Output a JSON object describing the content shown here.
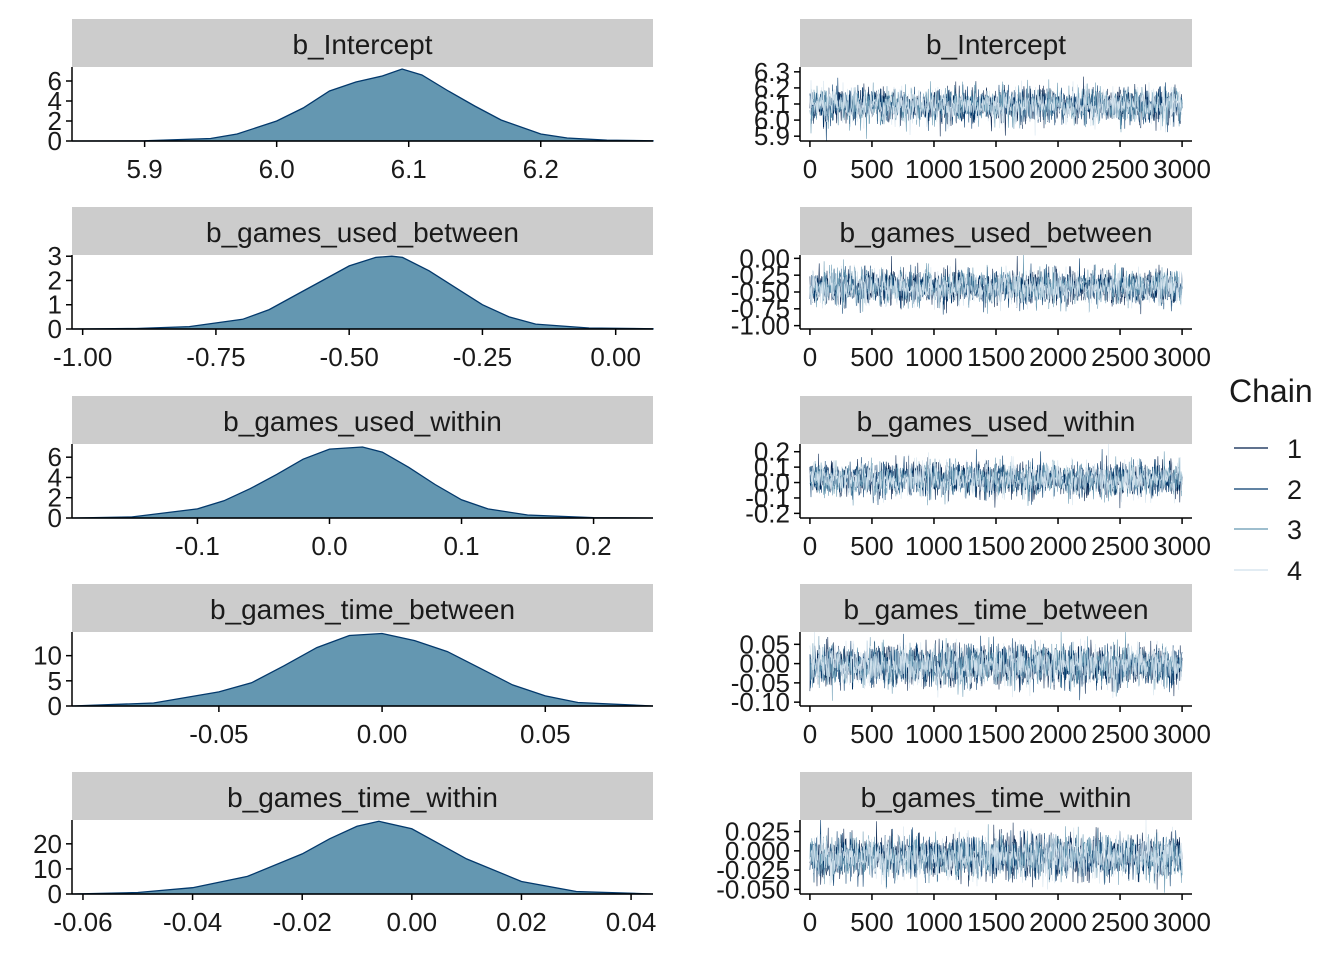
{
  "legend": {
    "title": "Chain",
    "items": [
      {
        "label": "1",
        "color": "#011f4b"
      },
      {
        "label": "2",
        "color": "#03396c"
      },
      {
        "label": "3",
        "color": "#6497b1"
      },
      {
        "label": "4",
        "color": "#d1e1ec"
      }
    ]
  },
  "colors": {
    "density_fill": "#6497b1",
    "density_line": "#03396c",
    "strip_bg": "#cccccc"
  },
  "chart_data": [
    {
      "type": "area",
      "panel": "density",
      "title": "b_Intercept",
      "xlim": [
        5.845,
        6.285
      ],
      "ylim": [
        0,
        7.4
      ],
      "xticks": [
        5.9,
        6.0,
        6.1,
        6.2
      ],
      "xtick_labels": [
        "5.9",
        "6.0",
        "6.1",
        "6.2"
      ],
      "yticks": [
        0,
        2,
        4,
        6
      ],
      "ytick_labels": [
        "0",
        "2",
        "4",
        "6"
      ],
      "x": [
        5.845,
        5.9,
        5.95,
        5.97,
        6.0,
        6.02,
        6.04,
        6.06,
        6.08,
        6.095,
        6.11,
        6.13,
        6.15,
        6.17,
        6.2,
        6.22,
        6.25,
        6.285
      ],
      "y": [
        0.0,
        0.02,
        0.25,
        0.7,
        2.0,
        3.3,
        5.0,
        5.9,
        6.5,
        7.2,
        6.6,
        5.0,
        3.5,
        2.1,
        0.7,
        0.3,
        0.08,
        0.02
      ]
    },
    {
      "type": "line",
      "panel": "trace",
      "title": "b_Intercept",
      "xlim": [
        -80,
        3080
      ],
      "ylim": [
        5.87,
        6.33
      ],
      "xticks": [
        0,
        500,
        1000,
        1500,
        2000,
        2500,
        3000
      ],
      "xtick_labels": [
        "0",
        "500",
        "1000",
        "1500",
        "2000",
        "2500",
        "3000"
      ],
      "yticks": [
        5.9,
        6.0,
        6.1,
        6.2,
        6.3
      ],
      "ytick_labels": [
        "5.9",
        "6.0",
        "6.1",
        "6.2",
        "6.3"
      ],
      "iterations": 3000,
      "mean": 6.09,
      "sd": 0.055
    },
    {
      "type": "area",
      "panel": "density",
      "title": "b_games_used_between",
      "xlim": [
        -1.02,
        0.07
      ],
      "ylim": [
        0,
        3.05
      ],
      "xticks": [
        -1.0,
        -0.75,
        -0.5,
        -0.25,
        0.0
      ],
      "xtick_labels": [
        "-1.00",
        "-0.75",
        "-0.50",
        "-0.25",
        "0.00"
      ],
      "yticks": [
        0,
        1,
        2,
        3
      ],
      "ytick_labels": [
        "0",
        "1",
        "2",
        "3"
      ],
      "x": [
        -1.02,
        -0.9,
        -0.8,
        -0.7,
        -0.65,
        -0.6,
        -0.55,
        -0.5,
        -0.45,
        -0.42,
        -0.4,
        -0.35,
        -0.3,
        -0.25,
        -0.2,
        -0.15,
        -0.05,
        0.07
      ],
      "y": [
        0.0,
        0.02,
        0.1,
        0.4,
        0.8,
        1.4,
        2.0,
        2.6,
        2.95,
        3.0,
        2.95,
        2.4,
        1.7,
        1.0,
        0.5,
        0.2,
        0.04,
        0.01
      ]
    },
    {
      "type": "line",
      "panel": "trace",
      "title": "b_games_used_between",
      "xlim": [
        -80,
        3080
      ],
      "ylim": [
        -1.05,
        0.05
      ],
      "xticks": [
        0,
        500,
        1000,
        1500,
        2000,
        2500,
        3000
      ],
      "xtick_labels": [
        "0",
        "500",
        "1000",
        "1500",
        "2000",
        "2500",
        "3000"
      ],
      "yticks": [
        -1.0,
        -0.75,
        -0.5,
        -0.25,
        0.0
      ],
      "ytick_labels": [
        "-1.00",
        "-0.75",
        "-0.50",
        "-0.25",
        "0.00"
      ],
      "iterations": 3000,
      "mean": -0.43,
      "sd": 0.13
    },
    {
      "type": "area",
      "panel": "density",
      "title": "b_games_used_within",
      "xlim": [
        -0.195,
        0.245
      ],
      "ylim": [
        0,
        7.3
      ],
      "xticks": [
        -0.1,
        0.0,
        0.1,
        0.2
      ],
      "xtick_labels": [
        "-0.1",
        "0.0",
        "0.1",
        "0.2"
      ],
      "yticks": [
        0,
        2,
        4,
        6
      ],
      "ytick_labels": [
        "0",
        "2",
        "4",
        "6"
      ],
      "x": [
        -0.195,
        -0.15,
        -0.1,
        -0.08,
        -0.06,
        -0.04,
        -0.02,
        0.0,
        0.025,
        0.04,
        0.06,
        0.08,
        0.1,
        0.12,
        0.15,
        0.2,
        0.245
      ],
      "y": [
        0.0,
        0.1,
        0.9,
        1.7,
        2.9,
        4.3,
        5.8,
        6.8,
        7.0,
        6.5,
        5.0,
        3.3,
        1.8,
        0.9,
        0.3,
        0.03,
        0.0
      ]
    },
    {
      "type": "line",
      "panel": "trace",
      "title": "b_games_used_within",
      "xlim": [
        -80,
        3080
      ],
      "ylim": [
        -0.23,
        0.25
      ],
      "xticks": [
        0,
        500,
        1000,
        1500,
        2000,
        2500,
        3000
      ],
      "xtick_labels": [
        "0",
        "500",
        "1000",
        "1500",
        "2000",
        "2500",
        "3000"
      ],
      "yticks": [
        -0.2,
        -0.1,
        0.0,
        0.1,
        0.2
      ],
      "ytick_labels": [
        "-0.2",
        "-0.1",
        "0.0",
        "0.1",
        "0.2"
      ],
      "iterations": 3000,
      "mean": 0.02,
      "sd": 0.055
    },
    {
      "type": "area",
      "panel": "density",
      "title": "b_games_time_between",
      "xlim": [
        -0.095,
        0.083
      ],
      "ylim": [
        0,
        14.7
      ],
      "xticks": [
        -0.05,
        0.0,
        0.05
      ],
      "xtick_labels": [
        "-0.05",
        "0.00",
        "0.05"
      ],
      "yticks": [
        0,
        5,
        10
      ],
      "ytick_labels": [
        "0",
        "5",
        "10"
      ],
      "x": [
        -0.095,
        -0.07,
        -0.05,
        -0.04,
        -0.03,
        -0.02,
        -0.01,
        0.0,
        0.01,
        0.02,
        0.03,
        0.04,
        0.05,
        0.06,
        0.083
      ],
      "y": [
        0.0,
        0.6,
        2.8,
        4.6,
        8.0,
        11.6,
        14.0,
        14.4,
        13.0,
        10.8,
        7.5,
        4.2,
        2.0,
        0.7,
        0.0
      ]
    },
    {
      "type": "line",
      "panel": "trace",
      "title": "b_games_time_between",
      "xlim": [
        -80,
        3080
      ],
      "ylim": [
        -0.11,
        0.082
      ],
      "xticks": [
        0,
        500,
        1000,
        1500,
        2000,
        2500,
        3000
      ],
      "xtick_labels": [
        "0",
        "500",
        "1000",
        "1500",
        "2000",
        "2500",
        "3000"
      ],
      "yticks": [
        -0.1,
        -0.05,
        0.0,
        0.05
      ],
      "ytick_labels": [
        "-0.10",
        "-0.05",
        "0.00",
        "0.05"
      ],
      "iterations": 3000,
      "mean": -0.005,
      "sd": 0.027
    },
    {
      "type": "area",
      "panel": "density",
      "title": "b_games_time_within",
      "xlim": [
        -0.062,
        0.044
      ],
      "ylim": [
        0,
        29.5
      ],
      "xticks": [
        -0.06,
        -0.04,
        -0.02,
        0.0,
        0.02,
        0.04
      ],
      "xtick_labels": [
        "-0.06",
        "-0.04",
        "-0.02",
        "0.00",
        "0.02",
        "0.04"
      ],
      "yticks": [
        0,
        10,
        20
      ],
      "ytick_labels": [
        "0",
        "10",
        "20"
      ],
      "x": [
        -0.062,
        -0.05,
        -0.04,
        -0.03,
        -0.02,
        -0.015,
        -0.01,
        -0.006,
        0.0,
        0.005,
        0.01,
        0.02,
        0.03,
        0.044
      ],
      "y": [
        0.0,
        0.6,
        2.5,
        7.0,
        16.0,
        22.0,
        27.0,
        29.0,
        26.0,
        20.0,
        14.0,
        5.0,
        1.0,
        0.0
      ]
    },
    {
      "type": "line",
      "panel": "trace",
      "title": "b_games_time_within",
      "xlim": [
        -80,
        3080
      ],
      "ylim": [
        -0.056,
        0.04
      ],
      "xticks": [
        0,
        500,
        1000,
        1500,
        2000,
        2500,
        3000
      ],
      "xtick_labels": [
        "0",
        "500",
        "1000",
        "1500",
        "2000",
        "2500",
        "3000"
      ],
      "yticks": [
        -0.05,
        -0.025,
        0.0,
        0.025
      ],
      "ytick_labels": [
        "-0.050",
        "-0.025",
        "0.000",
        "0.025"
      ],
      "iterations": 3000,
      "mean": -0.008,
      "sd": 0.014
    }
  ]
}
